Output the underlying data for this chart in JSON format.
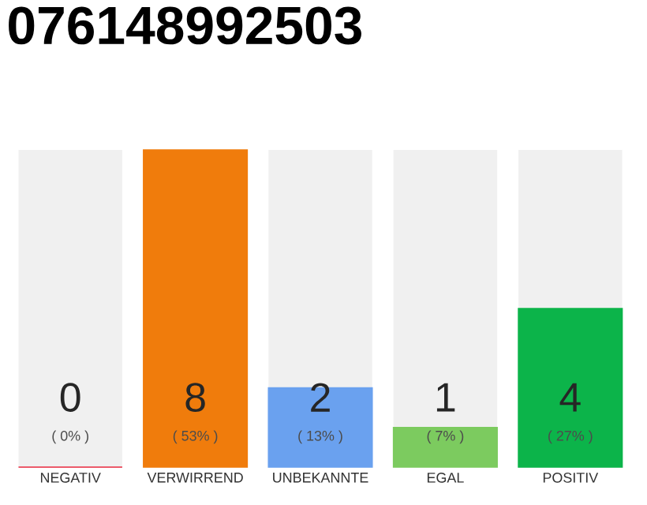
{
  "chart_data": {
    "type": "bar",
    "title": "076148992503",
    "categories": [
      "NEGATIV",
      "VERWIRREND",
      "UNBEKANNTE",
      "EGAL",
      "POSITIV"
    ],
    "values": [
      0,
      8,
      2,
      1,
      4
    ],
    "colors": [
      "#e8283c",
      "#f07c0c",
      "#6aa1ef",
      "#7ccb5f",
      "#0cb44a"
    ],
    "ylim": [
      0,
      8
    ],
    "value_labels": [
      "0",
      "8",
      "2",
      "1",
      "4"
    ],
    "annotations": [
      "( 0% )",
      "( 53% )",
      "( 13% )",
      "( 7% )",
      "( 27% )"
    ],
    "bands": [
      {
        "axis": "x",
        "from": "NEGATIV",
        "to": "NEGATIV",
        "color": "#f0f0f0"
      },
      {
        "axis": "x",
        "from": "UNBEKANNTE",
        "to": "UNBEKANNTE",
        "color": "#f0f0f0"
      },
      {
        "axis": "x",
        "from": "EGAL",
        "to": "EGAL",
        "color": "#f0f0f0"
      },
      {
        "axis": "x",
        "from": "POSITIV",
        "to": "POSITIV",
        "color": "#f0f0f0"
      }
    ],
    "tick_labels": "x"
  }
}
